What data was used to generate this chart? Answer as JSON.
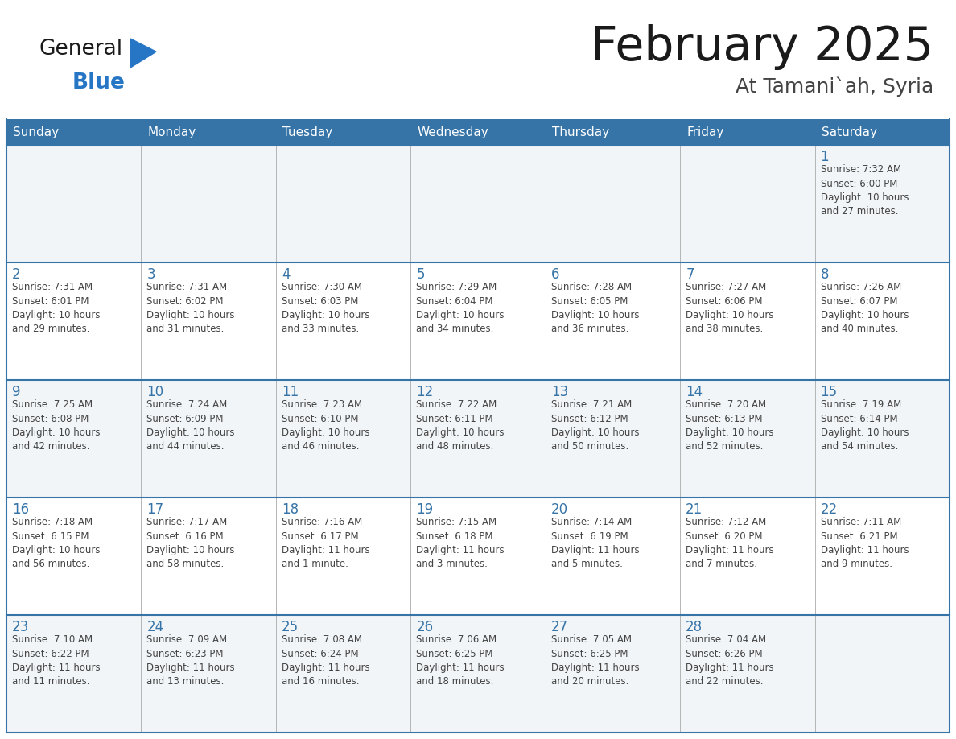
{
  "title": "February 2025",
  "subtitle": "At Tamani`ah, Syria",
  "header_color": "#3674A8",
  "header_text_color": "#FFFFFF",
  "cell_bg_color": "#FFFFFF",
  "cell_alt_bg_color": "#F2F5F8",
  "border_color": "#3674A8",
  "day_number_color": "#3674A8",
  "text_color": "#444444",
  "grid_line_color": "#AAAAAA",
  "days_of_week": [
    "Sunday",
    "Monday",
    "Tuesday",
    "Wednesday",
    "Thursday",
    "Friday",
    "Saturday"
  ],
  "weeks": [
    [
      {
        "day": "",
        "info": ""
      },
      {
        "day": "",
        "info": ""
      },
      {
        "day": "",
        "info": ""
      },
      {
        "day": "",
        "info": ""
      },
      {
        "day": "",
        "info": ""
      },
      {
        "day": "",
        "info": ""
      },
      {
        "day": "1",
        "info": "Sunrise: 7:32 AM\nSunset: 6:00 PM\nDaylight: 10 hours\nand 27 minutes."
      }
    ],
    [
      {
        "day": "2",
        "info": "Sunrise: 7:31 AM\nSunset: 6:01 PM\nDaylight: 10 hours\nand 29 minutes."
      },
      {
        "day": "3",
        "info": "Sunrise: 7:31 AM\nSunset: 6:02 PM\nDaylight: 10 hours\nand 31 minutes."
      },
      {
        "day": "4",
        "info": "Sunrise: 7:30 AM\nSunset: 6:03 PM\nDaylight: 10 hours\nand 33 minutes."
      },
      {
        "day": "5",
        "info": "Sunrise: 7:29 AM\nSunset: 6:04 PM\nDaylight: 10 hours\nand 34 minutes."
      },
      {
        "day": "6",
        "info": "Sunrise: 7:28 AM\nSunset: 6:05 PM\nDaylight: 10 hours\nand 36 minutes."
      },
      {
        "day": "7",
        "info": "Sunrise: 7:27 AM\nSunset: 6:06 PM\nDaylight: 10 hours\nand 38 minutes."
      },
      {
        "day": "8",
        "info": "Sunrise: 7:26 AM\nSunset: 6:07 PM\nDaylight: 10 hours\nand 40 minutes."
      }
    ],
    [
      {
        "day": "9",
        "info": "Sunrise: 7:25 AM\nSunset: 6:08 PM\nDaylight: 10 hours\nand 42 minutes."
      },
      {
        "day": "10",
        "info": "Sunrise: 7:24 AM\nSunset: 6:09 PM\nDaylight: 10 hours\nand 44 minutes."
      },
      {
        "day": "11",
        "info": "Sunrise: 7:23 AM\nSunset: 6:10 PM\nDaylight: 10 hours\nand 46 minutes."
      },
      {
        "day": "12",
        "info": "Sunrise: 7:22 AM\nSunset: 6:11 PM\nDaylight: 10 hours\nand 48 minutes."
      },
      {
        "day": "13",
        "info": "Sunrise: 7:21 AM\nSunset: 6:12 PM\nDaylight: 10 hours\nand 50 minutes."
      },
      {
        "day": "14",
        "info": "Sunrise: 7:20 AM\nSunset: 6:13 PM\nDaylight: 10 hours\nand 52 minutes."
      },
      {
        "day": "15",
        "info": "Sunrise: 7:19 AM\nSunset: 6:14 PM\nDaylight: 10 hours\nand 54 minutes."
      }
    ],
    [
      {
        "day": "16",
        "info": "Sunrise: 7:18 AM\nSunset: 6:15 PM\nDaylight: 10 hours\nand 56 minutes."
      },
      {
        "day": "17",
        "info": "Sunrise: 7:17 AM\nSunset: 6:16 PM\nDaylight: 10 hours\nand 58 minutes."
      },
      {
        "day": "18",
        "info": "Sunrise: 7:16 AM\nSunset: 6:17 PM\nDaylight: 11 hours\nand 1 minute."
      },
      {
        "day": "19",
        "info": "Sunrise: 7:15 AM\nSunset: 6:18 PM\nDaylight: 11 hours\nand 3 minutes."
      },
      {
        "day": "20",
        "info": "Sunrise: 7:14 AM\nSunset: 6:19 PM\nDaylight: 11 hours\nand 5 minutes."
      },
      {
        "day": "21",
        "info": "Sunrise: 7:12 AM\nSunset: 6:20 PM\nDaylight: 11 hours\nand 7 minutes."
      },
      {
        "day": "22",
        "info": "Sunrise: 7:11 AM\nSunset: 6:21 PM\nDaylight: 11 hours\nand 9 minutes."
      }
    ],
    [
      {
        "day": "23",
        "info": "Sunrise: 7:10 AM\nSunset: 6:22 PM\nDaylight: 11 hours\nand 11 minutes."
      },
      {
        "day": "24",
        "info": "Sunrise: 7:09 AM\nSunset: 6:23 PM\nDaylight: 11 hours\nand 13 minutes."
      },
      {
        "day": "25",
        "info": "Sunrise: 7:08 AM\nSunset: 6:24 PM\nDaylight: 11 hours\nand 16 minutes."
      },
      {
        "day": "26",
        "info": "Sunrise: 7:06 AM\nSunset: 6:25 PM\nDaylight: 11 hours\nand 18 minutes."
      },
      {
        "day": "27",
        "info": "Sunrise: 7:05 AM\nSunset: 6:25 PM\nDaylight: 11 hours\nand 20 minutes."
      },
      {
        "day": "28",
        "info": "Sunrise: 7:04 AM\nSunset: 6:26 PM\nDaylight: 11 hours\nand 22 minutes."
      },
      {
        "day": "",
        "info": ""
      }
    ]
  ],
  "logo_text_general": "General",
  "logo_text_blue": "Blue",
  "logo_color_general": "#1a1a1a",
  "logo_color_blue": "#2776C6",
  "logo_triangle_color": "#2776C6",
  "title_color": "#1a1a1a",
  "subtitle_color": "#444444"
}
